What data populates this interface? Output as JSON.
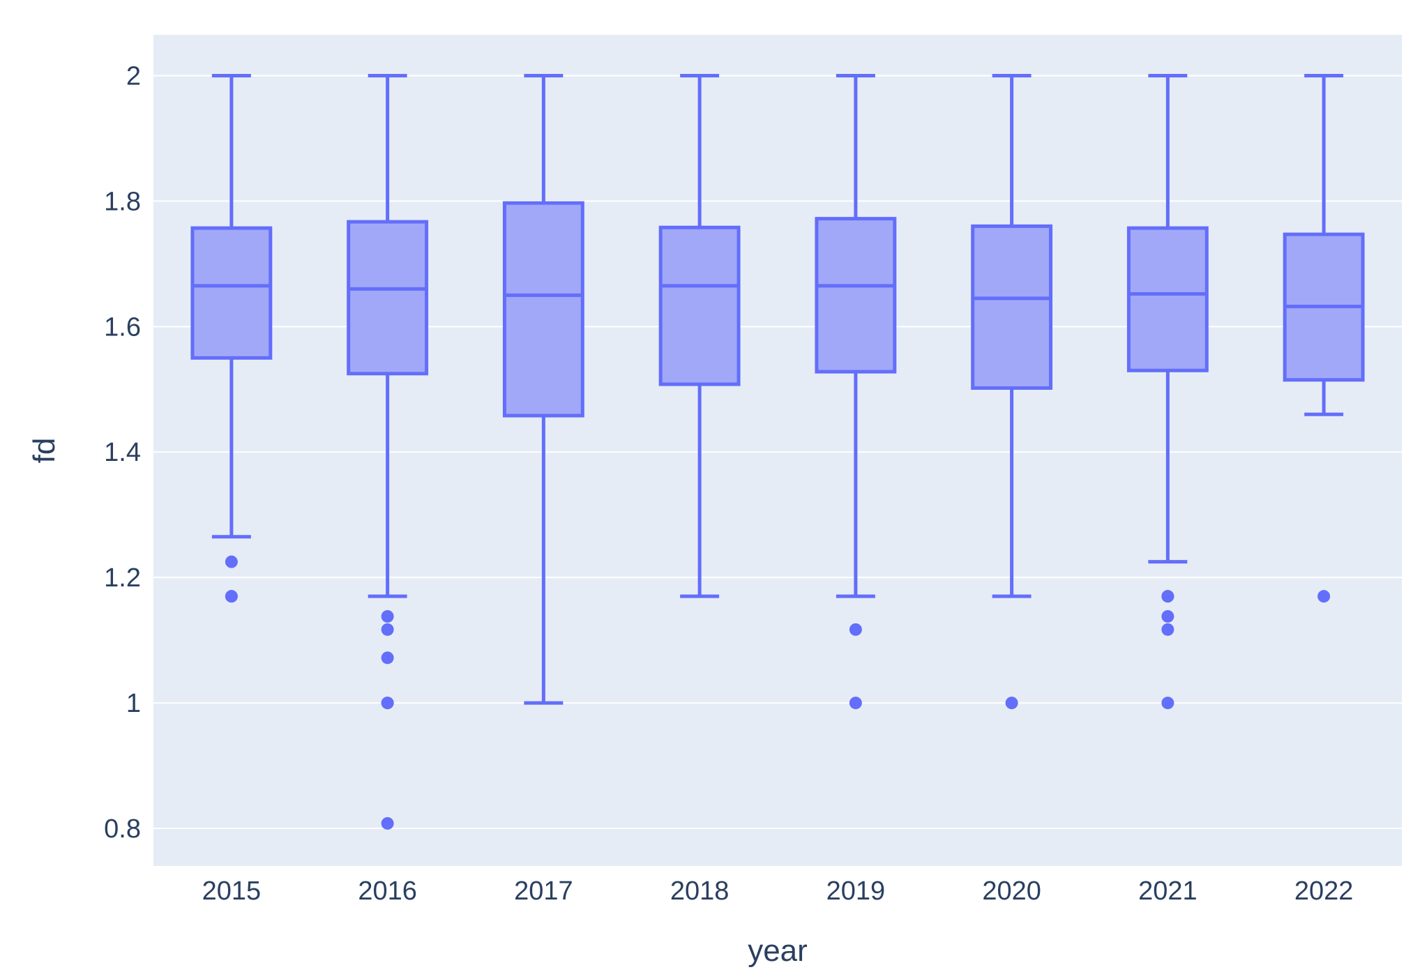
{
  "chart_data": {
    "type": "box",
    "xlabel": "year",
    "ylabel": "fd",
    "categories": [
      "2015",
      "2016",
      "2017",
      "2018",
      "2019",
      "2020",
      "2021",
      "2022"
    ],
    "ylim": [
      0.74,
      2.065
    ],
    "yticks": [
      0.8,
      1,
      1.2,
      1.4,
      1.6,
      1.8,
      2
    ],
    "ytick_labels": [
      "0.8",
      "1",
      "1.2",
      "1.4",
      "1.6",
      "1.8",
      "2"
    ],
    "grid": true,
    "colors": {
      "box_line": "#636efa",
      "box_fill": "#a2a8f8",
      "plot_background": "#e5ecf6",
      "grid": "#ffffff",
      "text": "#2a3f5f"
    },
    "boxes": [
      {
        "year": "2015",
        "lower_whisker": 1.265,
        "q1": 1.55,
        "median": 1.665,
        "q3": 1.757,
        "upper_whisker": 2,
        "outliers": [
          1.225,
          1.17,
          1.17
        ]
      },
      {
        "year": "2016",
        "lower_whisker": 1.17,
        "q1": 1.525,
        "median": 1.66,
        "q3": 1.767,
        "upper_whisker": 2,
        "outliers": [
          1.138,
          1.117,
          1.072,
          1.0,
          1.0,
          0.808
        ]
      },
      {
        "year": "2017",
        "lower_whisker": 1.0,
        "q1": 1.458,
        "median": 1.65,
        "q3": 1.797,
        "upper_whisker": 2,
        "outliers": []
      },
      {
        "year": "2018",
        "lower_whisker": 1.17,
        "q1": 1.508,
        "median": 1.665,
        "q3": 1.758,
        "upper_whisker": 2,
        "outliers": []
      },
      {
        "year": "2019",
        "lower_whisker": 1.17,
        "q1": 1.528,
        "median": 1.665,
        "q3": 1.772,
        "upper_whisker": 2,
        "outliers": [
          1.117,
          1.0
        ]
      },
      {
        "year": "2020",
        "lower_whisker": 1.17,
        "q1": 1.502,
        "median": 1.645,
        "q3": 1.76,
        "upper_whisker": 2,
        "outliers": [
          1.0
        ]
      },
      {
        "year": "2021",
        "lower_whisker": 1.225,
        "q1": 1.53,
        "median": 1.652,
        "q3": 1.757,
        "upper_whisker": 2,
        "outliers": [
          1.17,
          1.17,
          1.138,
          1.117,
          1.0
        ]
      },
      {
        "year": "2022",
        "lower_whisker": 1.46,
        "q1": 1.515,
        "median": 1.632,
        "q3": 1.747,
        "upper_whisker": 2,
        "outliers": [
          1.17
        ]
      }
    ]
  }
}
